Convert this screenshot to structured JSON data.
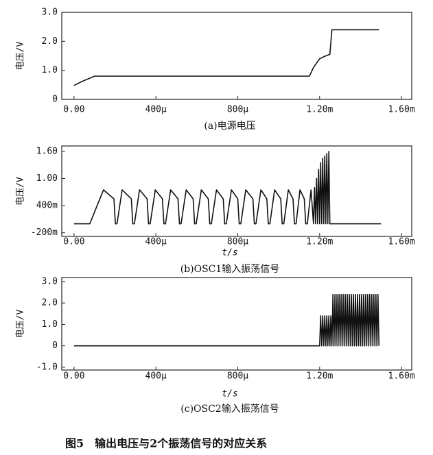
{
  "chart_data": [
    {
      "type": "line",
      "ylabel": "电压/V",
      "caption": "(a)电源电压",
      "xlim": [
        -6e-05,
        0.00165
      ],
      "ylim": [
        0,
        3
      ],
      "xticks": [
        {
          "value": 0,
          "label": "0.00"
        },
        {
          "value": 0.0004,
          "label": "400μ"
        },
        {
          "value": 0.0008,
          "label": "800μ"
        },
        {
          "value": 0.0012,
          "label": "1.20m"
        },
        {
          "value": 0.0016,
          "label": "1.60m"
        }
      ],
      "yticks": [
        0,
        {
          "value": 1,
          "label": "1.0"
        },
        {
          "value": 2,
          "label": "2.0"
        },
        {
          "value": 3,
          "label": "3.0"
        }
      ],
      "series": [
        {
          "color": "#111111",
          "x": [
            0,
            4e-05,
            0.0001,
            0.0011,
            0.00115,
            0.00117,
            0.0012,
            0.00123,
            0.00125,
            0.00126,
            0.00149
          ],
          "values": [
            0.48,
            0.62,
            0.8,
            0.8,
            0.8,
            1.1,
            1.4,
            1.5,
            1.55,
            2.4,
            2.4
          ]
        }
      ]
    },
    {
      "type": "line",
      "ylabel": "电压/V",
      "xlabel": "t/s",
      "caption": "(b)OSC1输入振荡信号",
      "xlim": [
        -6e-05,
        0.00165
      ],
      "ylim": [
        -0.28,
        1.72
      ],
      "xticks": [
        {
          "value": 0,
          "label": "0.00"
        },
        {
          "value": 0.0004,
          "label": "400μ"
        },
        {
          "value": 0.0008,
          "label": "800μ"
        },
        {
          "value": 0.0012,
          "label": "1.20m"
        },
        {
          "value": 0.0016,
          "label": "1.60m"
        }
      ],
      "yticks": [
        {
          "value": -0.2,
          "label": "-200m"
        },
        {
          "value": 0.4,
          "label": "400m"
        },
        {
          "value": 1,
          "label": "1.00"
        },
        {
          "value": 1.6,
          "label": "1.60"
        }
      ],
      "series": [
        {
          "color": "#111111",
          "x": [
            0,
            7.7e-05,
            0.000144,
            0.000195,
            0.000202,
            0.00021,
            0.000235,
            0.00028,
            0.000287,
            0.000295,
            0.00032,
            0.000357,
            0.000364,
            0.000372,
            0.000397,
            0.000432,
            0.000439,
            0.000447,
            0.000472,
            0.000508,
            0.000515,
            0.000523,
            0.000548,
            0.000582,
            0.000589,
            0.000597,
            0.000622,
            0.000656,
            0.000663,
            0.000671,
            0.000696,
            0.000729,
            0.000736,
            0.000744,
            0.000769,
            0.0008,
            0.000807,
            0.000815,
            0.000839,
            0.000874,
            0.000881,
            0.000889,
            0.000913,
            0.000942,
            0.000949,
            0.000957,
            0.00098,
            0.00101,
            0.001017,
            0.001025,
            0.001047,
            0.00107,
            0.001077,
            0.001085,
            0.001104,
            0.001125,
            0.001132,
            0.00114,
            0.001158,
            0.00117,
            0.001175,
            0.00118,
            0.001185,
            0.00119,
            0.001195,
            0.0012,
            0.001205,
            0.00121,
            0.001215,
            0.00122,
            0.001225,
            0.00123,
            0.001235,
            0.00124,
            0.001245,
            0.00125,
            0.0015
          ],
          "values": [
            0,
            0,
            0.75,
            0.55,
            0,
            0,
            0.75,
            0.55,
            0,
            0,
            0.75,
            0.55,
            0,
            0,
            0.75,
            0.55,
            0,
            0,
            0.75,
            0.55,
            0,
            0,
            0.75,
            0.55,
            0,
            0,
            0.75,
            0.55,
            0,
            0,
            0.75,
            0.55,
            0,
            0,
            0.75,
            0.55,
            0,
            0,
            0.75,
            0.55,
            0,
            0,
            0.75,
            0.55,
            0,
            0,
            0.75,
            0.55,
            0,
            0,
            0.75,
            0.55,
            0,
            0,
            0.75,
            0.55,
            0,
            0,
            0.75,
            0,
            0.8,
            0,
            1.0,
            0,
            1.2,
            0,
            1.35,
            0,
            1.45,
            0,
            1.5,
            0,
            1.55,
            0,
            1.6,
            0,
            0
          ]
        }
      ]
    },
    {
      "type": "line",
      "ylabel": "电压/V",
      "xlabel": "t/s",
      "caption": "(c)OSC2输入振荡信号",
      "xlim": [
        -6e-05,
        0.00165
      ],
      "ylim": [
        -1.13,
        3.19
      ],
      "xticks": [
        {
          "value": 0,
          "label": "0.00"
        },
        {
          "value": 0.0004,
          "label": "400μ"
        },
        {
          "value": 0.0008,
          "label": "800μ"
        },
        {
          "value": 0.0012,
          "label": "1.20m"
        },
        {
          "value": 0.0016,
          "label": "1.60m"
        }
      ],
      "yticks": [
        {
          "value": -1,
          "label": "-1.0"
        },
        0,
        {
          "value": 1,
          "label": "1.0"
        },
        {
          "value": 2,
          "label": "2.0"
        },
        {
          "value": 3,
          "label": "3.0"
        }
      ],
      "series": [
        {
          "color": "#111111",
          "x": [
            0,
            0.0012,
            0.001205,
            0.00121,
            0.001215,
            0.00122,
            0.001225,
            0.00123,
            0.001235,
            0.00124,
            0.001245,
            0.00125,
            0.001255,
            0.00126,
            0.001265,
            0.00127,
            0.001275,
            0.00128,
            0.001285,
            0.00129,
            0.001295,
            0.0013,
            0.001305,
            0.00131,
            0.001315,
            0.00132,
            0.001325,
            0.00133,
            0.001335,
            0.00134,
            0.001345,
            0.00135,
            0.001355,
            0.00136,
            0.001365,
            0.00137,
            0.001375,
            0.00138,
            0.001385,
            0.00139,
            0.001395,
            0.0014,
            0.001405,
            0.00141,
            0.001415,
            0.00142,
            0.001425,
            0.00143,
            0.001435,
            0.00144,
            0.001445,
            0.00145,
            0.001455,
            0.00146,
            0.001465,
            0.00147,
            0.001475,
            0.00148,
            0.001485,
            0.00149
          ],
          "values": [
            0,
            0,
            1.4,
            0,
            1.4,
            0,
            1.4,
            0,
            1.4,
            0,
            1.4,
            0,
            1.4,
            0,
            2.4,
            0,
            2.4,
            0,
            2.4,
            0,
            2.4,
            0,
            2.4,
            0,
            2.4,
            0,
            2.4,
            0,
            2.4,
            0,
            2.4,
            0,
            2.4,
            0,
            2.4,
            0,
            2.4,
            0,
            2.4,
            0,
            2.4,
            0,
            2.4,
            0,
            2.4,
            0,
            2.4,
            0,
            2.4,
            0,
            2.4,
            0,
            2.4,
            0,
            2.4,
            0,
            2.4,
            0,
            2.4,
            0
          ]
        }
      ]
    }
  ],
  "figure_caption": "图5　输出电压与2个振荡信号的对应关系"
}
